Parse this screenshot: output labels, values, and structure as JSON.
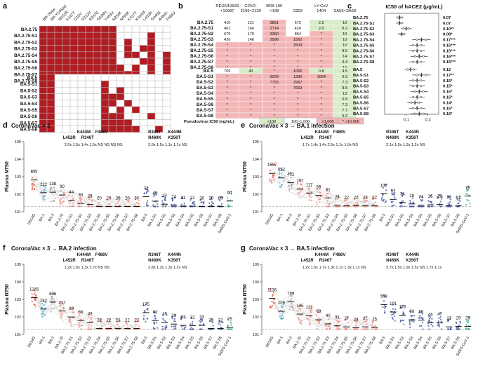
{
  "panel_letters": {
    "a": "a",
    "b": "b",
    "c": "c",
    "d": "d",
    "e": "e",
    "f": "f",
    "g": "g"
  },
  "panel_a": {
    "colors": {
      "filled": "#b01c22",
      "empty": "#ffffff",
      "grid": "#bbbbbb"
    },
    "mutations": [
      "BR-70del",
      "BR-Y145del",
      "W152R",
      "K147T",
      "I210V",
      "G213V",
      "R257E",
      "G339H",
      "Y453V",
      "N354K",
      "N460K",
      "K417T",
      "K444M",
      "L452R",
      "G446S",
      "A484K",
      "F486V"
    ],
    "group1_rows": [
      "BA.2.75",
      "BA.2.75-S1",
      "BA.2.75-S2",
      "BA.2.75-S3",
      "BA.2.75-S4",
      "BA.2.75-S5",
      "BA.2.75-S6",
      "BA.2.75-S7",
      "BA.2.75-S8"
    ],
    "group1_matrix": [
      [
        1,
        1,
        1,
        1,
        1,
        1,
        1,
        1,
        1,
        1,
        0,
        0,
        0,
        0,
        0,
        0,
        0
      ],
      [
        1,
        1,
        1,
        1,
        1,
        1,
        1,
        1,
        1,
        1,
        0,
        0,
        0,
        0,
        1,
        0,
        0
      ],
      [
        1,
        1,
        1,
        1,
        1,
        1,
        1,
        1,
        1,
        1,
        0,
        1,
        0,
        0,
        1,
        0,
        0
      ],
      [
        1,
        1,
        1,
        1,
        1,
        1,
        1,
        1,
        1,
        1,
        0,
        1,
        0,
        1,
        1,
        0,
        0
      ],
      [
        1,
        1,
        1,
        1,
        1,
        1,
        1,
        1,
        1,
        1,
        0,
        1,
        1,
        0,
        1,
        0,
        1
      ],
      [
        1,
        1,
        1,
        1,
        1,
        1,
        1,
        1,
        1,
        1,
        0,
        0,
        0,
        1,
        1,
        0,
        1
      ],
      [
        1,
        1,
        1,
        1,
        1,
        1,
        1,
        1,
        1,
        1,
        1,
        0,
        1,
        0,
        1,
        0,
        1
      ],
      [
        1,
        1,
        1,
        1,
        1,
        1,
        1,
        1,
        1,
        1,
        1,
        1,
        1,
        0,
        1,
        0,
        1
      ],
      [
        1,
        1,
        1,
        1,
        1,
        1,
        1,
        1,
        1,
        1,
        1,
        1,
        0,
        1,
        1,
        1,
        1
      ]
    ],
    "group2_rows": [
      "BA.5",
      "BA.5-S1",
      "BA.5-S2",
      "BA.5-S3",
      "BA.5-S4",
      "BA.5-S5",
      "BA.5-S6",
      "BA.5-S7",
      "BA.5-S8"
    ],
    "group2_matrix": [
      [
        1,
        1,
        0,
        0,
        0,
        0,
        0,
        0,
        0,
        0,
        0,
        0,
        0,
        0,
        0,
        0,
        0
      ],
      [
        1,
        1,
        0,
        0,
        0,
        0,
        0,
        0,
        1,
        0,
        0,
        0,
        0,
        0,
        0,
        0,
        0
      ],
      [
        1,
        1,
        0,
        0,
        0,
        0,
        0,
        0,
        1,
        0,
        1,
        0,
        0,
        0,
        0,
        0,
        0
      ],
      [
        1,
        1,
        0,
        0,
        0,
        0,
        0,
        0,
        1,
        1,
        1,
        0,
        0,
        0,
        0,
        0,
        0
      ],
      [
        1,
        1,
        0,
        0,
        0,
        0,
        0,
        0,
        1,
        1,
        0,
        1,
        0,
        0,
        0,
        0,
        0
      ],
      [
        1,
        1,
        0,
        0,
        0,
        0,
        0,
        0,
        1,
        0,
        1,
        0,
        1,
        0,
        0,
        0,
        0
      ],
      [
        1,
        1,
        0,
        0,
        0,
        0,
        0,
        0,
        1,
        1,
        1,
        0,
        0,
        0,
        1,
        0,
        0
      ],
      [
        1,
        1,
        0,
        0,
        0,
        0,
        0,
        0,
        1,
        1,
        1,
        1,
        0,
        0,
        0,
        0,
        0
      ],
      [
        1,
        1,
        0,
        0,
        0,
        0,
        0,
        0,
        1,
        1,
        1,
        1,
        1,
        0,
        0,
        1,
        0
      ]
    ]
  },
  "panel_b": {
    "headers": [
      "REGN10933\n+10987",
      "COV2-\n2196+2130",
      "BRII-196\n+198",
      "S309",
      "LY-CoV\n1404",
      "SA55+SA58"
    ],
    "group1_rows": [
      "BA.2.75",
      "BA.2.75-S1",
      "BA.2.75-S2",
      "BA.2.75-S3",
      "BA.2.75-S4",
      "BA.2.75-S5",
      "BA.2.75-S6",
      "BA.2.75-S7",
      "BA.2.75-S8"
    ],
    "group1_values": [
      [
        "410",
        "121",
        "3861",
        "672",
        "2.2",
        "10"
      ],
      [
        "461",
        "164",
        "2714",
        "424",
        "2.0",
        "8.2"
      ],
      [
        "679",
        "170",
        "3360",
        "864",
        "*",
        "10"
      ],
      [
        "426",
        "148",
        "2996",
        "1562",
        "*",
        "10"
      ],
      [
        "*",
        "*",
        "*",
        "2503",
        "*",
        "10"
      ],
      [
        "*",
        "*",
        "*",
        "*",
        "*",
        "8.5"
      ],
      [
        "*",
        "*",
        "*",
        "*",
        "*",
        "14"
      ],
      [
        "*",
        "*",
        "*",
        "*",
        "*",
        "9.3"
      ],
      [
        "*",
        "*",
        "*",
        "*",
        "*",
        "10"
      ]
    ],
    "group2_rows": [
      "BA.5",
      "BA.5-S1",
      "BA.5-S2",
      "BA.5-S3",
      "BA.5-S4",
      "BA.5-S5",
      "BA.5-S6",
      "BA.5-S7",
      "BA.5-S8"
    ],
    "group2_values": [
      [
        "709",
        "40",
        "*",
        "1055",
        "0.8",
        "4.5"
      ],
      [
        "*",
        "*",
        "9228",
        "1395",
        "1604",
        "9.3"
      ],
      [
        "*",
        "*",
        "7755",
        "2967",
        "*",
        "7.3"
      ],
      [
        "*",
        "*",
        "*",
        "7663",
        "*",
        "8.5"
      ],
      [
        "*",
        "*",
        "*",
        "*",
        "*",
        "13"
      ],
      [
        "*",
        "*",
        "*",
        "*",
        "*",
        "6.5"
      ],
      [
        "*",
        "*",
        "*",
        "*",
        "*",
        "7.3"
      ],
      [
        "*",
        "*",
        "*",
        "*",
        "*",
        "7.7"
      ],
      [
        "*",
        "*",
        "*",
        "*",
        "*",
        "9.2"
      ]
    ],
    "legend_label": "Pseudovirus IC50 (ng/mL)",
    "legend_items": [
      "<100",
      "100~1,000",
      ">1,000",
      "* >10,000"
    ],
    "colors": {
      "low": "#d9ecc9",
      "mid": "#ffffff",
      "high": "#f3b6b6",
      "none": "#f3b6b6"
    }
  },
  "panel_c": {
    "title": "IC50 of hACE2 (μg/mL)",
    "group1": [
      {
        "label": "BA.2.75",
        "value": "0.07",
        "mean": 0.07
      },
      {
        "label": "BA.2.75-S1",
        "value": "0.07",
        "mean": 0.07
      },
      {
        "label": "BA.2.75-S2",
        "value": "0.10**",
        "mean": 0.1
      },
      {
        "label": "BA.2.75-S3",
        "value": "0.08*",
        "mean": 0.08
      },
      {
        "label": "BA.2.75-S4",
        "value": "0.17***",
        "mean": 0.17
      },
      {
        "label": "BA.2.75-S5",
        "value": "0.15***",
        "mean": 0.15
      },
      {
        "label": "BA.2.75-S6",
        "value": "0.15***",
        "mean": 0.15
      },
      {
        "label": "BA.2.75-S7",
        "value": "0.16***",
        "mean": 0.16
      },
      {
        "label": "BA.2.75-S8",
        "value": "0.15***",
        "mean": 0.15
      }
    ],
    "group2": [
      {
        "label": "BA.5",
        "value": "0.12",
        "mean": 0.12
      },
      {
        "label": "BA.5-S1",
        "value": "0.17**",
        "mean": 0.17
      },
      {
        "label": "BA.5-S2",
        "value": "0.15*",
        "mean": 0.15
      },
      {
        "label": "BA.5-S3",
        "value": "0.15*",
        "mean": 0.15
      },
      {
        "label": "BA.5-S4",
        "value": "0.16*",
        "mean": 0.16
      },
      {
        "label": "BA.5-S5",
        "value": "0.15*",
        "mean": 0.15
      },
      {
        "label": "BA.5-S6",
        "value": "0.14*",
        "mean": 0.14
      },
      {
        "label": "BA.5-S7",
        "value": "0.15*",
        "mean": 0.15
      },
      {
        "label": "BA.5-S8",
        "value": "0.16*",
        "mean": 0.16
      }
    ],
    "x_ticks": [
      "0.1",
      "0.2"
    ],
    "xlim": [
      0.0,
      0.25
    ]
  },
  "chart_data": [
    {
      "type": "scatter",
      "panel": "d",
      "title": "CoronaVac × 3",
      "ylabel": "Plasma NT50",
      "ylim_log10": [
        1,
        5
      ],
      "y_ticks": [
        "10^1",
        "10^2",
        "10^3",
        "10^4",
        "10^5"
      ],
      "categories": [
        "D614G",
        "BA.1",
        "BA.2",
        "BA.2.75",
        "BA.2.75-S1",
        "BA.2.75-S2",
        "BA.2.75-S3",
        "BA.2.75-S4",
        "BA.2.75-S5",
        "BA.2.75-S6",
        "BA.2.75-S7",
        "BA.2.75-S8",
        "BA.5",
        "BA.5-S1",
        "BA.5-S2",
        "BA.5-S3",
        "BA.5-S4",
        "BA.5-S5",
        "BA.5-S6",
        "BA.5-S7",
        "BA.5-S8",
        "SARS-CoV-1"
      ],
      "values": [
        652,
        122,
        130,
        90,
        44,
        30,
        26,
        20,
        20,
        20,
        20,
        20,
        72,
        40,
        27,
        24,
        21,
        21,
        20,
        20,
        20,
        41
      ],
      "value_labels": [
        "652",
        "122",
        "130",
        "90",
        "44",
        "30",
        "26",
        "20",
        "20",
        "20",
        "20",
        "20",
        "72",
        "40",
        "27",
        "24",
        "21",
        "21",
        "20",
        "20",
        "20",
        "41"
      ],
      "annot_left_muts": [
        "K444M",
        "F486V",
        "L452R",
        "R346T"
      ],
      "annot_left_folds": "2.0x 1.5x 1.4x 1.5x NS NS NS NS",
      "annot_right_muts": [
        "R346T",
        "K444M",
        "N460K",
        "K356T"
      ],
      "annot_right_folds": "2.0x 1.5x 1.1x 1.1x NS"
    },
    {
      "type": "scatter",
      "panel": "e",
      "title": "CoronaVac × 3 → BA.1 infection",
      "ylabel": "Plasma NT50",
      "ylim_log10": [
        1,
        5
      ],
      "y_ticks": [
        "10^1",
        "10^2",
        "10^3",
        "10^4",
        "10^5"
      ],
      "categories": [
        "D614G",
        "BA.1",
        "BA.2",
        "BA.2.75",
        "BA.2.75-S1",
        "BA.2.75-S2",
        "BA.2.75-S3",
        "BA.2.75-S4",
        "BA.2.75-S5",
        "BA.2.75-S6",
        "BA.2.75-S7",
        "BA.2.75-S8",
        "BA.5",
        "BA.5-S1",
        "BA.5-S2",
        "BA.5-S3",
        "BA.5-S4",
        "BA.5-S5",
        "BA.5-S6",
        "BA.5-S7",
        "BA.5-S8",
        "SARS-CoV-1"
      ],
      "values": [
        1557,
        852,
        452,
        197,
        117,
        86,
        61,
        24,
        22,
        22,
        22,
        22,
        107,
        51,
        34,
        28,
        24,
        25,
        26,
        23,
        22,
        79
      ],
      "value_labels": [
        "1557",
        "852",
        "452",
        "197",
        "117",
        "86",
        "61",
        "24",
        "22",
        "22",
        "22",
        "22",
        "107",
        "51",
        "34",
        "28",
        "24",
        "25",
        "26",
        "23",
        "22",
        "79"
      ],
      "annot_left_muts": [
        "K444M",
        "F486V",
        "L452R",
        "R346T"
      ],
      "annot_left_folds": "1.7x 1.4x 1.4x 2.5x 1.1x 1.0x NS",
      "annot_right_muts": [
        "R346T",
        "K444N",
        "N460K",
        "K356T"
      ],
      "annot_right_folds": "2.1x 1.5x 1.2x 1.2x NS"
    },
    {
      "type": "scatter",
      "panel": "f",
      "title": "CoronaVac × 3 → BA.2 infection",
      "ylabel": "Plasma NT50",
      "ylim_log10": [
        1,
        5
      ],
      "y_ticks": [
        "10^1",
        "10^2",
        "10^3",
        "10^4",
        "10^5"
      ],
      "categories": [
        "D614G",
        "BA.1",
        "BA.2",
        "BA.2.75",
        "BA.2.75-S1",
        "BA.2.75-S2",
        "BA.2.75-S3",
        "BA.2.75-S4",
        "BA.2.75-S5",
        "BA.2.75-S6",
        "BA.2.75-S7",
        "BA.2.75-S8",
        "BA.5",
        "BA.5-S1",
        "BA.5-S2",
        "BA.5-S3",
        "BA.5-S4",
        "BA.5-S5",
        "BA.5-S6",
        "BA.5-S7",
        "BA.5-S8",
        "SARS-CoV-1"
      ],
      "values": [
        1245,
        282,
        696,
        217,
        99,
        63,
        49,
        22,
        22,
        22,
        22,
        22,
        175,
        62,
        49,
        39,
        33,
        32,
        33,
        22,
        22,
        25
      ],
      "value_labels": [
        "1245",
        "282",
        "696",
        "217",
        "99",
        "63",
        "49",
        "22",
        "22",
        "22",
        "22",
        "22",
        "175",
        "62",
        "49",
        "39",
        "33",
        "32",
        "33",
        "22",
        "22",
        "25"
      ],
      "annot_left_muts": [
        "K444M",
        "F486V",
        "L452R",
        "R346T"
      ],
      "annot_left_folds": "1.2x 1.6x 1.3x 2.7x NS NS",
      "annot_right_muts": [
        "R346T",
        "K444N",
        "N460K",
        "K356T"
      ],
      "annot_right_folds": "2.8x 1.3x 1.3x 1.2x NS"
    },
    {
      "type": "scatter",
      "panel": "g",
      "title": "CoronaVac × 3 → BA.5 infection",
      "ylabel": "Plasma NT50",
      "ylim_log10": [
        1,
        5
      ],
      "y_ticks": [
        "10^1",
        "10^2",
        "10^3",
        "10^4",
        "10^5"
      ],
      "categories": [
        "D614G",
        "BA.1",
        "BA.2",
        "BA.2.75",
        "BA.2.75-S1",
        "BA.2.75-S2",
        "BA.2.75-S3",
        "BA.2.75-S4",
        "BA.2.75-S5",
        "BA.2.75-S6",
        "BA.2.75-S7",
        "BA.2.75-S8",
        "BA.5",
        "BA.5-S1",
        "BA.5-S2",
        "BA.5-S3",
        "BA.5-S4",
        "BA.5-S5",
        "BA.5-S6",
        "BA.5-S7",
        "BA.5-S8",
        "SARS-CoV-1"
      ],
      "values": [
        1136,
        209,
        729,
        145,
        121,
        69,
        40,
        31,
        27,
        24,
        27,
        25,
        508,
        191,
        126,
        68,
        66,
        46,
        47,
        27,
        29,
        29
      ],
      "value_labels": [
        "1136",
        "209",
        "729",
        "145",
        "121",
        "69",
        "40",
        "31",
        "27",
        "24",
        "27",
        "25",
        "508",
        "191",
        "126",
        "68",
        "66",
        "46",
        "47",
        "27",
        "29",
        "29"
      ],
      "annot_left_muts": [
        "K444M",
        "F486V",
        "L452R",
        "R346T"
      ],
      "annot_left_folds": "1.2x 1.5x 1.7x 1.3x 1.1x 1.3x 1.1x NS",
      "annot_right_muts": [
        "R346T",
        "K444N",
        "N460K",
        "K356T"
      ],
      "annot_right_folds": "2.7x 1.5x 1.9x 1.5x NS 1.7x 1.1x"
    }
  ],
  "scatter_colors": {
    "D614G": "#e8462e",
    "BA.1": "#3aa3c6",
    "BA.2": "#9e9e9e",
    "BA.2.75": "#f08070",
    "BA.5": "#3b4f9b",
    "SARS-CoV-1": "#2aa38a"
  }
}
